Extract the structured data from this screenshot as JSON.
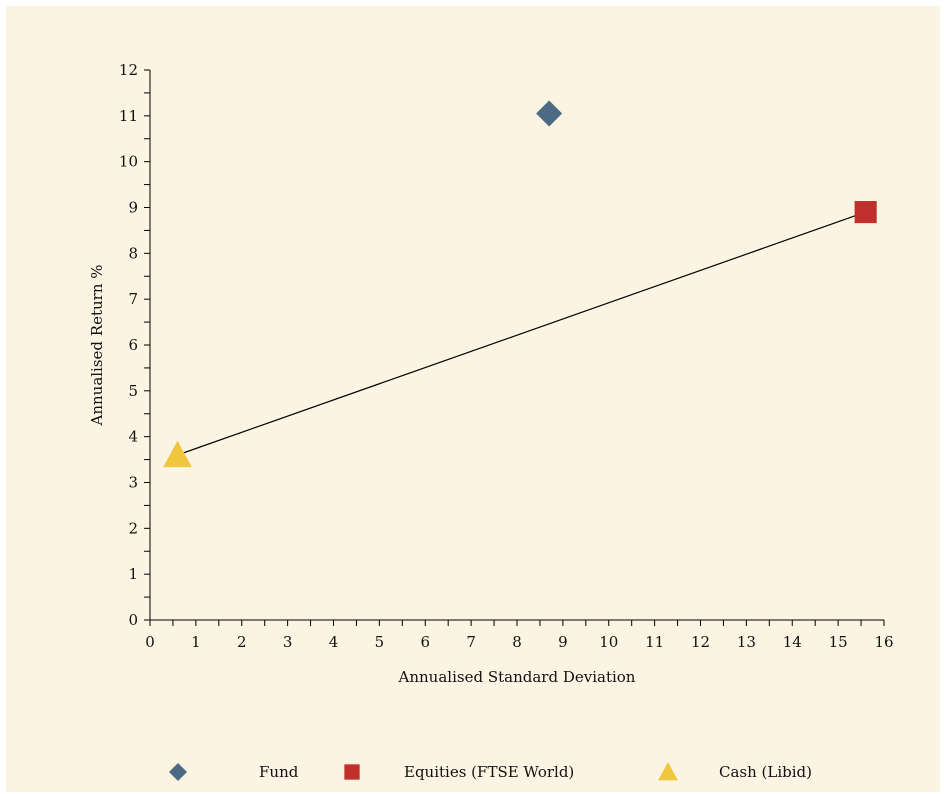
{
  "chart_data": {
    "type": "scatter",
    "title": "",
    "xlabel": "Annualised Standard Deviation",
    "ylabel": "Annualised Return %",
    "xlim": [
      0,
      16
    ],
    "ylim": [
      0,
      12
    ],
    "x_ticks": [
      "0",
      "1",
      "2",
      "3",
      "4",
      "5",
      "6",
      "7",
      "8",
      "9",
      "10",
      "11",
      "12",
      "13",
      "14",
      "15",
      "16"
    ],
    "y_ticks": [
      "0",
      "1",
      "2",
      "3",
      "4",
      "5",
      "6",
      "7",
      "8",
      "9",
      "10",
      "11",
      "12"
    ],
    "grid": false,
    "legend_position": "bottom",
    "series": [
      {
        "name": "Fund",
        "marker": "diamond",
        "color": "#4d6a85",
        "points": [
          [
            8.7,
            11.05
          ]
        ]
      },
      {
        "name": "Equities (FTSE World)",
        "marker": "square",
        "color": "#c0302a",
        "points": [
          [
            15.6,
            8.9
          ]
        ]
      },
      {
        "name": "Cash (Libid)",
        "marker": "triangle",
        "color": "#f0c63c",
        "points": [
          [
            0.6,
            3.6
          ]
        ]
      }
    ],
    "line": {
      "from": [
        0.6,
        3.6
      ],
      "to": [
        15.6,
        8.9
      ],
      "color": "#000000"
    }
  }
}
